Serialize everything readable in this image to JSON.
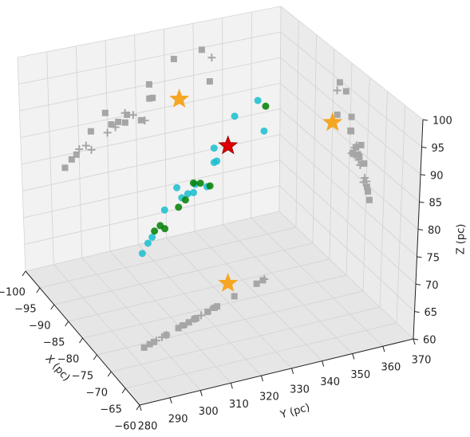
{
  "chart_data": {
    "type": "scatter3d",
    "xlabel": "X (pc)",
    "ylabel": "Y (pc)",
    "zlabel": "Z (pc)",
    "xlim": [
      -100,
      -60
    ],
    "ylim": [
      280,
      370
    ],
    "zlim": [
      60,
      100
    ],
    "xticks": [
      {
        "value": -100,
        "label": "−100"
      },
      {
        "value": -95,
        "label": "−95"
      },
      {
        "value": -90,
        "label": "−90"
      },
      {
        "value": -85,
        "label": "−85"
      },
      {
        "value": -80,
        "label": "−80"
      },
      {
        "value": -75,
        "label": "−75"
      },
      {
        "value": -70,
        "label": "−70"
      },
      {
        "value": -65,
        "label": "−65"
      },
      {
        "value": -60,
        "label": "−60"
      }
    ],
    "yticks": [
      280,
      290,
      300,
      310,
      320,
      330,
      340,
      350,
      360,
      370
    ],
    "zticks": [
      60,
      65,
      70,
      75,
      80,
      85,
      90,
      95,
      100
    ],
    "grid": true,
    "series": [
      {
        "color": "#17becf",
        "marker": "o",
        "shadow_color": "#a6a6a6",
        "shadow_marker": "s",
        "x": [
          -74,
          -74.5,
          -74.8,
          -75.8,
          -76.8,
          -77.2,
          -77.6,
          -78.1,
          -78.2,
          -79.1,
          -79.7,
          -79.9,
          -79.7,
          -81.4,
          -83.7,
          -83.2
        ],
        "y": [
          295,
          297.4,
          299.1,
          304.3,
          309.4,
          311.4,
          313.8,
          316.2,
          316.9,
          321.7,
          324.7,
          325.8,
          324.7,
          333.3,
          345.6,
          342.9
        ],
        "z": [
          77.6,
          78.9,
          79.6,
          83.4,
          86.3,
          83.9,
          84.1,
          83.7,
          85.1,
          83.5,
          87.3,
          87.3,
          90,
          93.9,
          88.2,
          94.6
        ]
      },
      {
        "color": "#008000",
        "marker": "o",
        "shadow_color": "#a6a6a6",
        "shadow_marker": "+",
        "x": [
          -75,
          -75.5,
          -75.8,
          -76.9,
          -77.4,
          -78.1,
          -78.6,
          -79.4,
          -83.9
        ],
        "y": [
          300.1,
          302.5,
          304.3,
          310,
          312.8,
          316.2,
          319,
          323,
          346.3
        ],
        "z": [
          80.5,
          80.9,
          79.9,
          82.5,
          83.2,
          85.5,
          84.8,
          83.3,
          92.7
        ]
      },
      {
        "color": "#e00000",
        "marker": "*",
        "shadow_color": "#f5a623",
        "shadow_marker": "*",
        "x": [
          -85
        ],
        "y": [
          335
        ],
        "z": [
          86
        ]
      }
    ]
  }
}
